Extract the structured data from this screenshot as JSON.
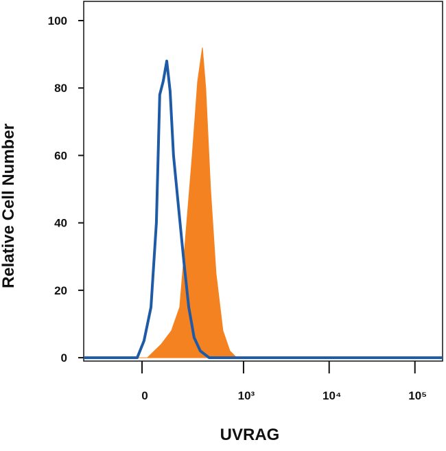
{
  "chart_data": {
    "type": "area",
    "xlabel": "UVRAG",
    "ylabel": "Relative Cell Number",
    "xscale": "logicle",
    "xlim": [
      -301,
      210000
    ],
    "ylim": [
      -1,
      105.7
    ],
    "xticks": [
      0,
      {
        "value": 1000,
        "label": "10³"
      },
      {
        "value": 10000,
        "label": "10⁴"
      },
      {
        "value": 100000,
        "label": "10⁵"
      }
    ],
    "yticks": [
      0,
      20,
      40,
      60,
      80,
      100
    ],
    "series": [
      {
        "color": "#f58220",
        "style": "filled",
        "x": [
          -301,
          19,
          71,
          115,
          157,
          190,
          236,
          278,
          320,
          352,
          404,
          471,
          570,
          690,
          830,
          210000
        ],
        "values": [
          0,
          0,
          4,
          8,
          15,
          35,
          60,
          82,
          92,
          80,
          50,
          25,
          8,
          2,
          0,
          0
        ]
      },
      {
        "color": "#1f5aa6",
        "style": "outline",
        "x": [
          -301,
          -17,
          7,
          32,
          52,
          65,
          79,
          94,
          109,
          125,
          150,
          182,
          212,
          250,
          301,
          388,
          210000
        ],
        "values": [
          0,
          0,
          5,
          15,
          40,
          78,
          82,
          88,
          79,
          60,
          45,
          28,
          15,
          6,
          2,
          0,
          0
        ]
      }
    ]
  }
}
